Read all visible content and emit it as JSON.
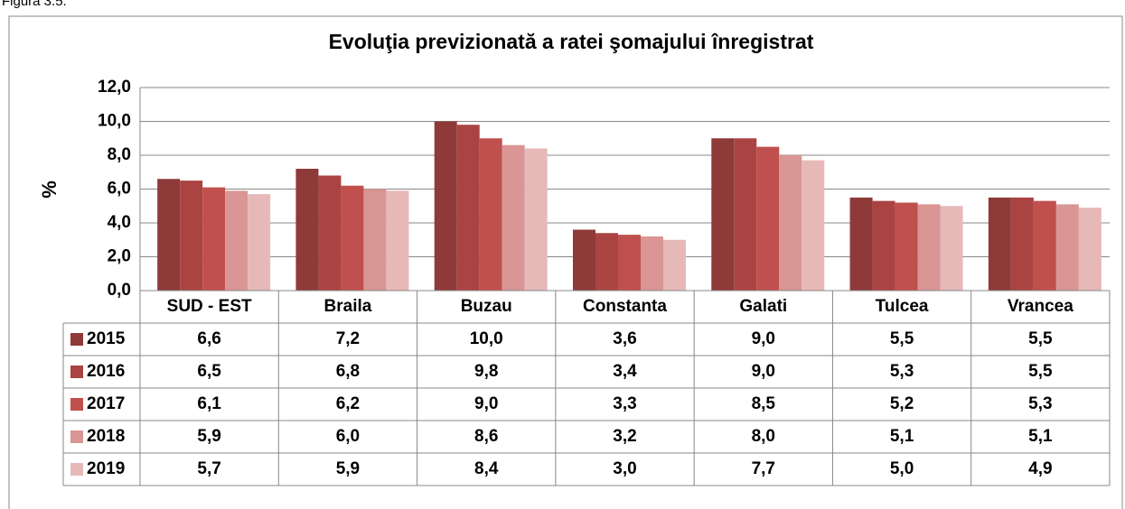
{
  "caption": "Figura 3.5.",
  "chart_data": {
    "type": "bar",
    "title": "Evoluţia previzionată a ratei şomajului înregistrat",
    "ylabel": "%",
    "categories": [
      "SUD - EST",
      "Braila",
      "Buzau",
      "Constanta",
      "Galati",
      "Tulcea",
      "Vrancea"
    ],
    "series": [
      {
        "name": "2015",
        "color": "#8e3a38",
        "values": [
          6.6,
          7.2,
          10.0,
          3.6,
          9.0,
          5.5,
          5.5
        ],
        "value_labels": [
          "6,6",
          "7,2",
          "10,0",
          "3,6",
          "9,0",
          "5,5",
          "5,5"
        ]
      },
      {
        "name": "2016",
        "color": "#a94442",
        "values": [
          6.5,
          6.8,
          9.8,
          3.4,
          9.0,
          5.3,
          5.5
        ],
        "value_labels": [
          "6,5",
          "6,8",
          "9,8",
          "3,4",
          "9,0",
          "5,3",
          "5,5"
        ]
      },
      {
        "name": "2017",
        "color": "#c0504d",
        "values": [
          6.1,
          6.2,
          9.0,
          3.3,
          8.5,
          5.2,
          5.3
        ],
        "value_labels": [
          "6,1",
          "6,2",
          "9,0",
          "3,3",
          "8,5",
          "5,2",
          "5,3"
        ]
      },
      {
        "name": "2018",
        "color": "#d99694",
        "values": [
          5.9,
          6.0,
          8.6,
          3.2,
          8.0,
          5.1,
          5.1
        ],
        "value_labels": [
          "5,9",
          "6,0",
          "8,6",
          "3,2",
          "8,0",
          "5,1",
          "5,1"
        ]
      },
      {
        "name": "2019",
        "color": "#e6b9b8",
        "values": [
          5.7,
          5.9,
          8.4,
          3.0,
          7.7,
          5.0,
          4.9
        ],
        "value_labels": [
          "5,7",
          "5,9",
          "8,4",
          "3,0",
          "7,7",
          "5,0",
          "4,9"
        ]
      }
    ],
    "ylim": [
      0,
      12
    ],
    "yticks": [
      {
        "value": 0,
        "label": "0,0"
      },
      {
        "value": 2,
        "label": "2,0"
      },
      {
        "value": 4,
        "label": "4,0"
      },
      {
        "value": 6,
        "label": "6,0"
      },
      {
        "value": 8,
        "label": "8,0"
      },
      {
        "value": 10,
        "label": "10,0"
      },
      {
        "value": 12,
        "label": "12,0"
      }
    ],
    "grid": true
  }
}
